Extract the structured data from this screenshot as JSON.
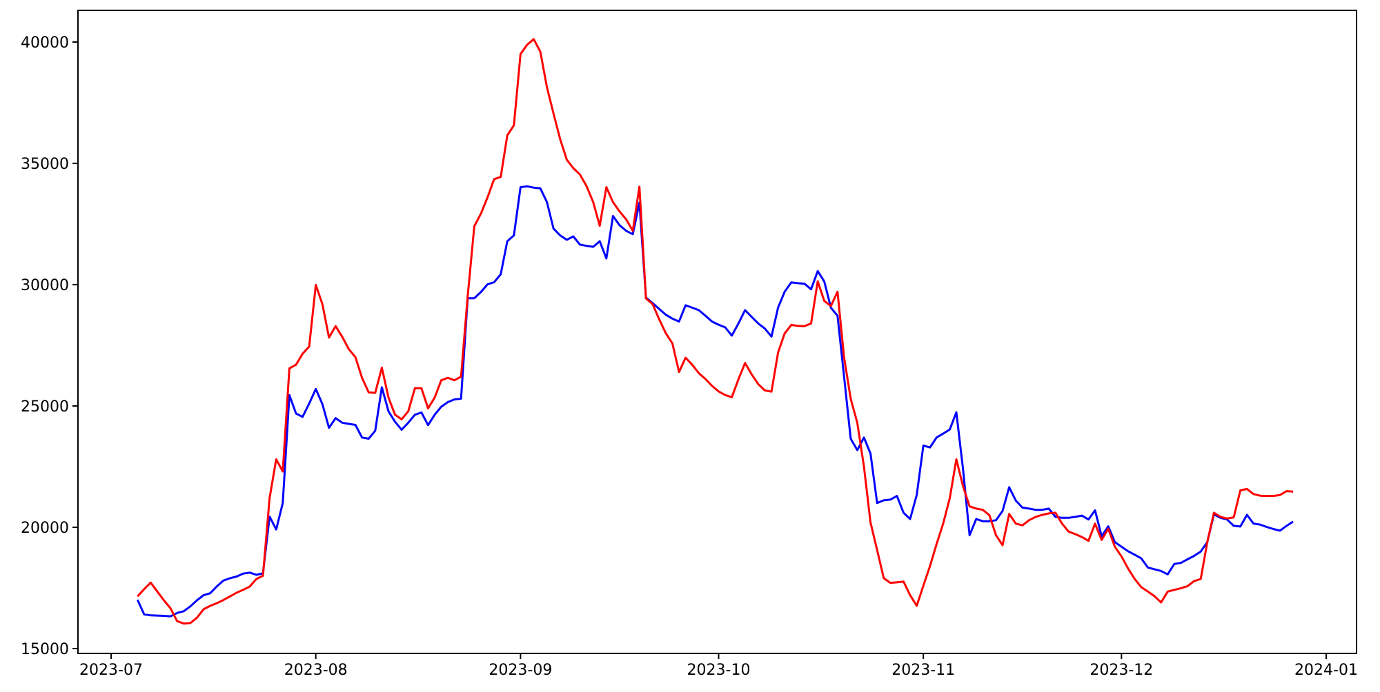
{
  "chart_data": {
    "type": "line",
    "title": "",
    "xlabel": "",
    "ylabel": "",
    "grid": false,
    "legend": null,
    "background_color": "#ffffff",
    "axis_color": "#000000",
    "x_axis": {
      "ticks": [
        {
          "label": "2023-07",
          "date": "2023-07-01"
        },
        {
          "label": "2023-08",
          "date": "2023-08-01"
        },
        {
          "label": "2023-09",
          "date": "2023-09-01"
        },
        {
          "label": "2023-10",
          "date": "2023-10-01"
        },
        {
          "label": "2023-11",
          "date": "2023-11-01"
        },
        {
          "label": "2023-12",
          "date": "2023-12-01"
        },
        {
          "label": "2024-01",
          "date": "2024-01-01"
        }
      ],
      "xlim": [
        "2023-06-26",
        "2024-01-06"
      ]
    },
    "y_axis": {
      "ticks": [
        15000,
        20000,
        25000,
        30000,
        35000,
        40000
      ],
      "ylim": [
        14800,
        41400
      ]
    },
    "series": [
      {
        "name": "blue-series",
        "color": "#0000ff",
        "line_width": 3,
        "start_date": "2023-07-05",
        "frequency": "daily",
        "values": [
          17010,
          16410,
          16370,
          16360,
          16350,
          16330,
          16470,
          16540,
          16740,
          16990,
          17200,
          17280,
          17560,
          17800,
          17900,
          17970,
          18090,
          18130,
          18040,
          18100,
          20440,
          19910,
          21000,
          25450,
          24690,
          24550,
          25100,
          25700,
          25070,
          24100,
          24500,
          24310,
          24260,
          24220,
          23700,
          23650,
          23980,
          25770,
          24780,
          24350,
          24020,
          24310,
          24640,
          24730,
          24210,
          24640,
          24970,
          25160,
          25270,
          25300,
          29440,
          29440,
          29700,
          30010,
          30100,
          30430,
          31790,
          32030,
          34020,
          34050,
          34000,
          33970,
          33400,
          32310,
          32030,
          31850,
          31990,
          31650,
          31600,
          31560,
          31790,
          31080,
          32830,
          32450,
          32220,
          32080,
          33380,
          29470,
          29240,
          29000,
          28760,
          28600,
          28480,
          29150,
          29050,
          28950,
          28720,
          28480,
          28350,
          28240,
          27900,
          28400,
          28950,
          28670,
          28400,
          28190,
          27860,
          29050,
          29710,
          30090,
          30060,
          30040,
          29810,
          30560,
          30130,
          29050,
          28720,
          26210,
          23650,
          23180,
          23700,
          23040,
          21000,
          21110,
          21140,
          21290,
          20600,
          20340,
          21330,
          23370,
          23290,
          23700,
          23860,
          24030,
          24740,
          22420,
          19670,
          20340,
          20250,
          20250,
          20290,
          20670,
          21650,
          21100,
          20810,
          20770,
          20720,
          20720,
          20770,
          20430,
          20390,
          20390,
          20430,
          20480,
          20320,
          20700,
          19630,
          20040,
          19390,
          19200,
          19010,
          18870,
          18720,
          18340,
          18270,
          18200,
          18060,
          18490,
          18530,
          18680,
          18820,
          19000,
          19390,
          20530,
          20390,
          20320,
          20060,
          20030,
          20510,
          20150,
          20110,
          20010,
          19930,
          19860,
          20060,
          20230
        ]
      },
      {
        "name": "red-series",
        "color": "#ff0000",
        "line_width": 3,
        "start_date": "2023-07-05",
        "frequency": "daily",
        "values": [
          17150,
          17450,
          17720,
          17350,
          16990,
          16660,
          16130,
          16030,
          16050,
          16270,
          16620,
          16760,
          16870,
          17000,
          17150,
          17300,
          17420,
          17560,
          17870,
          18000,
          21200,
          22800,
          22300,
          26550,
          26700,
          27150,
          27450,
          29990,
          29190,
          27820,
          28290,
          27850,
          27340,
          27010,
          26160,
          25560,
          25540,
          26580,
          25350,
          24640,
          24450,
          24780,
          25730,
          25730,
          24900,
          25350,
          26060,
          26160,
          26060,
          26210,
          29520,
          32410,
          32930,
          33590,
          34350,
          34440,
          36150,
          36570,
          39510,
          39890,
          40120,
          39600,
          38130,
          37050,
          36000,
          35150,
          34800,
          34540,
          34060,
          33400,
          32430,
          34020,
          33400,
          33020,
          32690,
          32220,
          34040,
          29430,
          29200,
          28570,
          28000,
          27580,
          26400,
          26990,
          26700,
          26350,
          26110,
          25830,
          25600,
          25450,
          25360,
          26100,
          26770,
          26300,
          25900,
          25640,
          25590,
          27200,
          27990,
          28340,
          28300,
          28290,
          28400,
          30140,
          29330,
          29120,
          29710,
          27000,
          25300,
          24300,
          22500,
          20200,
          19060,
          17900,
          17710,
          17730,
          17760,
          17200,
          16760,
          17590,
          18400,
          19300,
          20150,
          21200,
          22800,
          21700,
          20860,
          20770,
          20720,
          20500,
          19670,
          19260,
          20550,
          20150,
          20080,
          20290,
          20430,
          20510,
          20570,
          20600,
          20150,
          19820,
          19720,
          19600,
          19440,
          20150,
          19480,
          19940,
          19200,
          18800,
          18300,
          17870,
          17530,
          17350,
          17160,
          16900,
          17350,
          17420,
          17490,
          17570,
          17780,
          17870,
          19390,
          20600,
          20430,
          20360,
          20410,
          21520,
          21580,
          21370,
          21300,
          21290,
          21290,
          21330,
          21490,
          21470
        ]
      }
    ]
  }
}
